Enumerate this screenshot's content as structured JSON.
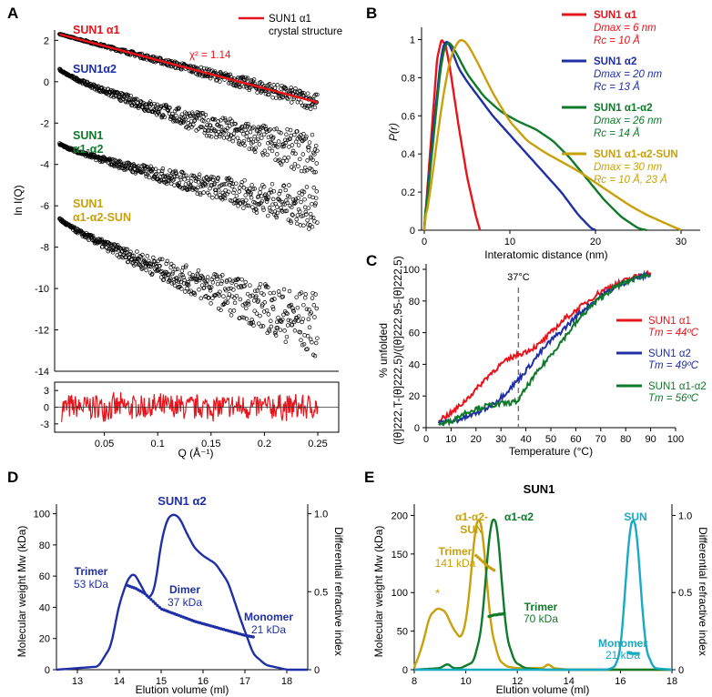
{
  "panel_labels": [
    "A",
    "B",
    "C",
    "D",
    "E"
  ],
  "colors": {
    "red": "#e8141b",
    "blue": "#1f2fa5",
    "green": "#0f7a2a",
    "gold": "#c8a00a",
    "cyan": "#18a9c4",
    "black": "#000000",
    "gray": "#777777"
  },
  "chart_data": [
    {
      "panel": "A",
      "type": "scatter",
      "xlabel": "Q (Å⁻¹)",
      "ylabel": "ln I(Q)",
      "xlim": [
        0,
        0.25
      ],
      "ylim": [
        -14,
        2.5
      ],
      "xticks": [
        "0.05",
        "0.1",
        "0.15",
        "0.2",
        "0.25"
      ],
      "yticks": [
        "2",
        "0",
        "-2",
        "-4",
        "-6",
        "-8",
        "-10",
        "-12",
        "-14"
      ],
      "legend_label": "SUN1 α1\ncrystal structure",
      "chi_label": "χ² = 1.14",
      "series": [
        {
          "name": "SUN1 α1",
          "color": "red",
          "start": 2.3,
          "end": -1.0,
          "fit": true
        },
        {
          "name": "SUN1α2",
          "color": "blue",
          "start": 0.6,
          "end": -3.6
        },
        {
          "name": "SUN1\nα1-α2",
          "color": "green",
          "start": -3.0,
          "end": -6.2
        },
        {
          "name": "SUN1\nα1-α2-SUN",
          "color": "gold",
          "start": -6.6,
          "end": -11.8
        }
      ],
      "residual_yticks": [
        "3",
        "0",
        "-3"
      ]
    },
    {
      "panel": "B",
      "type": "line",
      "xlabel": "Interatomic distance (nm)",
      "ylabel": "P(r)",
      "xlim": [
        0,
        30
      ],
      "ylim": [
        0,
        1.05
      ],
      "xticks": [
        "0",
        "10",
        "20",
        "30"
      ],
      "yticks": [
        "0",
        "0.2",
        "0.4",
        "0.6",
        "0.8",
        "1"
      ],
      "series": [
        {
          "name": "SUN1 α1",
          "color": "red",
          "dmax": "Dmax = 6 nm",
          "rc": "Rc = 10 Å",
          "x": [
            0,
            1,
            1.5,
            2,
            2.5,
            3,
            4,
            5,
            6,
            6.5
          ],
          "y": [
            0,
            0.6,
            0.9,
            1.0,
            0.97,
            0.85,
            0.55,
            0.28,
            0.08,
            0
          ]
        },
        {
          "name": "SUN1 α2",
          "color": "blue",
          "dmax": "Dmax = 20 nm",
          "rc": "Rc = 13 Å",
          "x": [
            0,
            1,
            2,
            2.5,
            3,
            4,
            5,
            6,
            8,
            10,
            12,
            14,
            16,
            18,
            19.5,
            20
          ],
          "y": [
            0,
            0.5,
            0.93,
            1.0,
            0.97,
            0.85,
            0.78,
            0.72,
            0.6,
            0.5,
            0.4,
            0.3,
            0.2,
            0.08,
            0.01,
            0
          ]
        },
        {
          "name": "SUN1 α1-α2",
          "color": "green",
          "dmax": "Dmax = 26 nm",
          "rc": "Rc = 14 Å",
          "x": [
            0,
            1,
            2,
            2.7,
            3.5,
            5,
            7,
            9,
            11,
            13,
            15,
            17,
            19,
            21,
            23,
            25,
            26
          ],
          "y": [
            0,
            0.45,
            0.9,
            1.0,
            0.95,
            0.82,
            0.7,
            0.62,
            0.57,
            0.53,
            0.47,
            0.38,
            0.27,
            0.16,
            0.07,
            0.01,
            0
          ]
        },
        {
          "name": "SUN1 α1-α2-SUN",
          "color": "gold",
          "dmax": "Dmax = 30 nm",
          "rc": "Rc = 10 Å, 23 Å",
          "x": [
            0,
            1,
            2,
            3,
            4,
            4.5,
            5,
            6,
            8,
            10,
            12,
            14,
            16,
            18,
            20,
            22,
            24,
            26,
            28,
            29.5,
            30
          ],
          "y": [
            0,
            0.3,
            0.65,
            0.9,
            1.0,
            1.0,
            0.98,
            0.9,
            0.72,
            0.57,
            0.47,
            0.41,
            0.36,
            0.31,
            0.25,
            0.19,
            0.13,
            0.08,
            0.04,
            0.01,
            0
          ]
        }
      ]
    },
    {
      "panel": "C",
      "type": "line",
      "xlabel": "Temperature (°C)",
      "ylabel_1": "% unfolded",
      "ylabel_2": "([θ]222,T-[θ]222,5)/([θ]222,95-[θ]222,5)",
      "xlim": [
        0,
        100
      ],
      "ylim": [
        0,
        100
      ],
      "xticks": [
        "0",
        "10",
        "20",
        "30",
        "40",
        "50",
        "60",
        "70",
        "80",
        "90",
        "100"
      ],
      "yticks": [
        "0",
        "20",
        "40",
        "60",
        "80",
        "100"
      ],
      "vline": {
        "x": 37,
        "label": "37°C"
      },
      "series": [
        {
          "name": "SUN1 α1",
          "tm": "Tm = 44ºC",
          "color": "red",
          "x": [
            5,
            10,
            15,
            20,
            25,
            30,
            35,
            40,
            45,
            50,
            55,
            60,
            65,
            70,
            75,
            80,
            85,
            90
          ],
          "y": [
            5,
            9,
            16,
            24,
            33,
            40,
            45,
            48,
            52,
            60,
            68,
            74,
            80,
            86,
            90,
            93,
            96,
            98
          ]
        },
        {
          "name": "SUN1 α2",
          "tm": "Tm = 49ºC",
          "color": "blue",
          "x": [
            5,
            10,
            15,
            20,
            25,
            30,
            35,
            40,
            45,
            50,
            55,
            60,
            65,
            70,
            75,
            80,
            85,
            90
          ],
          "y": [
            3,
            4,
            6,
            9,
            13,
            19,
            27,
            36,
            46,
            55,
            62,
            70,
            77,
            83,
            88,
            92,
            95,
            97
          ]
        },
        {
          "name": "SUN1 α1-α2",
          "tm": "Tm = 56ºC",
          "color": "green",
          "x": [
            5,
            10,
            15,
            20,
            25,
            30,
            35,
            37,
            40,
            45,
            50,
            55,
            60,
            65,
            70,
            75,
            80,
            85,
            90
          ],
          "y": [
            2,
            4,
            9,
            12,
            14,
            15,
            16,
            17,
            25,
            36,
            46,
            56,
            66,
            75,
            82,
            88,
            92,
            95,
            97
          ]
        }
      ]
    },
    {
      "panel": "D",
      "type": "line",
      "title": "SUN1 α2",
      "xlabel": "Elution volume (ml)",
      "ylabel_left": "Molecular weight Mw (kDa)",
      "ylabel_right": "Differential refractive index",
      "xlim": [
        12.5,
        18.5
      ],
      "ylim_left": [
        0,
        105
      ],
      "ylim_right": [
        0,
        1.05
      ],
      "xticks": [
        "13",
        "14",
        "15",
        "16",
        "17",
        "18"
      ],
      "yticks_left": [
        "0",
        "20",
        "40",
        "60",
        "80",
        "100"
      ],
      "yticks_right": [
        "0",
        "0.5",
        "1.0"
      ],
      "annotations": [
        {
          "label": "Trimer",
          "value": "53 kDa"
        },
        {
          "label": "Dimer",
          "value": "37 kDa"
        },
        {
          "label": "Monomer",
          "value": "21 kDa"
        }
      ],
      "series": [
        {
          "name": "dRI",
          "color": "blue",
          "axis": "right",
          "x": [
            12.5,
            13.5,
            13.8,
            14.0,
            14.2,
            14.35,
            14.5,
            14.7,
            14.85,
            15.0,
            15.15,
            15.3,
            15.45,
            15.6,
            15.8,
            16.0,
            16.3,
            16.6,
            16.9,
            17.2,
            17.5,
            18.0,
            18.5
          ],
          "y": [
            0,
            0.02,
            0.15,
            0.42,
            0.58,
            0.62,
            0.55,
            0.45,
            0.52,
            0.82,
            0.97,
            1.0,
            0.97,
            0.88,
            0.78,
            0.73,
            0.68,
            0.56,
            0.32,
            0.1,
            0.03,
            0.0,
            0
          ]
        },
        {
          "name": "Mw",
          "color": "blue",
          "axis": "left",
          "dotted": true,
          "x": [
            14.2,
            14.4,
            14.6,
            14.8,
            15.0,
            15.2,
            15.4,
            15.6,
            15.8,
            16.0,
            16.2,
            16.4,
            16.6,
            16.8,
            17.0,
            17.2
          ],
          "y": [
            54,
            52,
            49,
            44,
            39,
            37,
            35,
            33,
            31,
            29.5,
            28,
            26.5,
            25,
            23.5,
            22,
            21
          ]
        }
      ]
    },
    {
      "panel": "E",
      "type": "line",
      "title": "SUN1",
      "xlabel": "Elution volume (ml)",
      "ylabel_left": "Molecular weight Mw (kDa)",
      "ylabel_right": "Differential refractive index",
      "xlim": [
        8,
        18
      ],
      "ylim_left": [
        0,
        210
      ],
      "ylim_right": [
        0,
        1.05
      ],
      "xticks": [
        "8",
        "10",
        "12",
        "14",
        "16",
        "18"
      ],
      "yticks_left": [
        "0",
        "50",
        "100",
        "150",
        "200"
      ],
      "yticks_right": [
        "0",
        "0.5",
        "1.0"
      ],
      "peak_labels": [
        {
          "label": "α1-α2-\nSUN",
          "color": "gold"
        },
        {
          "label": "α1-α2",
          "color": "green"
        },
        {
          "label": "SUN",
          "color": "cyan"
        }
      ],
      "annotations": [
        {
          "label": "Trimer",
          "value": "141 kDa",
          "color": "gold"
        },
        {
          "label": "Trimer",
          "value": "70 kDa",
          "color": "green"
        },
        {
          "label": "Monomer",
          "value": "21 kDa",
          "color": "cyan"
        }
      ],
      "star": "*",
      "series": [
        {
          "name": "α1-α2-SUN dRI",
          "color": "gold",
          "axis": "right",
          "x": [
            8,
            8.3,
            8.6,
            8.9,
            9.2,
            9.5,
            9.8,
            10.0,
            10.2,
            10.35,
            10.5,
            10.65,
            10.8,
            11.0,
            11.3,
            11.6,
            12,
            13,
            13.2,
            13.4,
            14,
            18
          ],
          "y": [
            0.01,
            0.15,
            0.35,
            0.4,
            0.38,
            0.27,
            0.2,
            0.3,
            0.6,
            0.9,
            1.0,
            0.9,
            0.6,
            0.25,
            0.06,
            0.02,
            0.01,
            0.01,
            0.04,
            0.01,
            0,
            0
          ]
        },
        {
          "name": "α1-α2 dRI",
          "color": "green",
          "axis": "right",
          "x": [
            8,
            9,
            9.3,
            9.5,
            9.8,
            10.3,
            10.6,
            10.8,
            10.95,
            11.1,
            11.25,
            11.4,
            11.6,
            11.9,
            12.3,
            13,
            18
          ],
          "y": [
            0,
            0.01,
            0.04,
            0.01,
            0.01,
            0.05,
            0.25,
            0.65,
            0.93,
            1.0,
            0.9,
            0.55,
            0.2,
            0.05,
            0.01,
            0,
            0
          ]
        },
        {
          "name": "SUN dRI",
          "color": "cyan",
          "axis": "right",
          "x": [
            8,
            15.5,
            15.8,
            16.0,
            16.2,
            16.35,
            16.5,
            16.65,
            16.8,
            17.0,
            17.3,
            18
          ],
          "y": [
            0,
            0,
            0.02,
            0.12,
            0.55,
            0.9,
            1.0,
            0.88,
            0.5,
            0.12,
            0.01,
            0
          ]
        },
        {
          "name": "α1-α2-SUN Mw",
          "color": "gold",
          "axis": "left",
          "dotted": true,
          "x": [
            10.4,
            10.5,
            10.6,
            10.7,
            10.8,
            10.9,
            11.0,
            11.1
          ],
          "y": [
            148,
            145,
            142,
            139,
            136,
            133,
            131,
            129
          ]
        },
        {
          "name": "α1-α2 Mw",
          "color": "green",
          "axis": "left",
          "dotted": true,
          "x": [
            10.9,
            11.0,
            11.1,
            11.2,
            11.3,
            11.4,
            11.5
          ],
          "y": [
            69,
            70,
            71,
            71,
            72,
            72,
            73
          ]
        },
        {
          "name": "SUN Mw",
          "color": "cyan",
          "axis": "left",
          "dotted": true,
          "x": [
            16.3,
            16.4,
            16.5,
            16.6,
            16.7
          ],
          "y": [
            22,
            21,
            21,
            21,
            21
          ]
        }
      ]
    }
  ]
}
